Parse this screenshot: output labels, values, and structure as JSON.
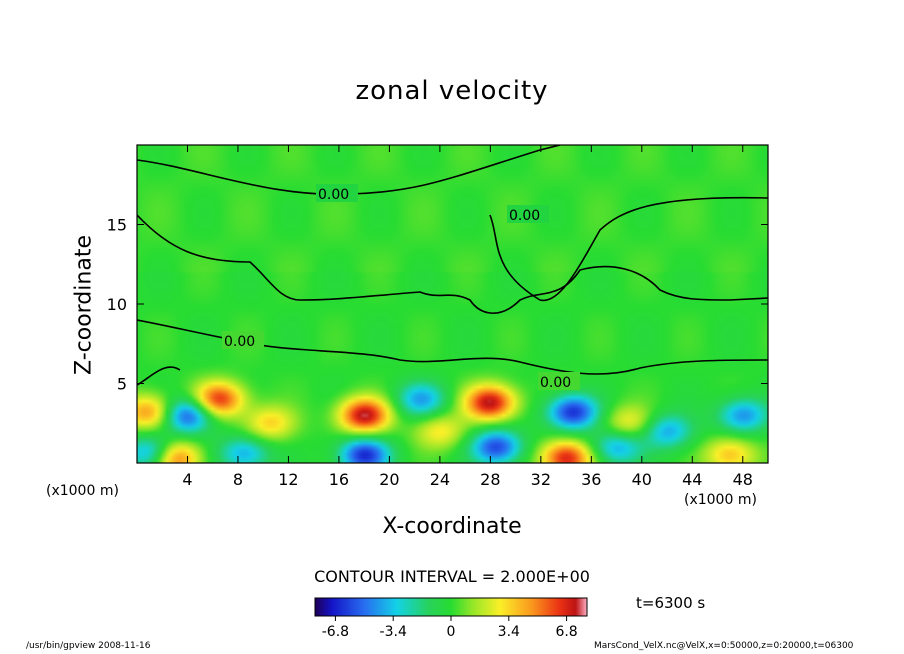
{
  "chart_data": {
    "type": "heatmap",
    "title": "zonal velocity",
    "xlabel": "X-coordinate",
    "ylabel": "Z-coordinate",
    "x_unit": "(x1000 m)",
    "xlim": [
      0,
      50
    ],
    "ylim": [
      0,
      20
    ],
    "x_ticks": [
      "4",
      "8",
      "12",
      "16",
      "20",
      "24",
      "28",
      "32",
      "36",
      "40",
      "44",
      "48"
    ],
    "y_ticks": [
      "5",
      "10",
      "15"
    ],
    "contour_interval_text": "CONTOUR INTERVAL = 2.000E+00",
    "contour_labels": [
      "0.00",
      "0.00",
      "0.00",
      "0.00"
    ],
    "colorbar_ticks": [
      "-6.8",
      "-3.4",
      "0",
      "3.4",
      "6.8"
    ],
    "color_range": [
      -8,
      8
    ],
    "time_label": "t=6300 s",
    "extremes": [
      {
        "x": 6.5,
        "z": 4.0,
        "v": 6.5
      },
      {
        "x": 18.0,
        "z": 3.0,
        "v": 7.5
      },
      {
        "x": 28.0,
        "z": 3.8,
        "v": 7.5
      },
      {
        "x": 34.0,
        "z": 0.3,
        "v": 7.0
      },
      {
        "x": 3.0,
        "z": 0.3,
        "v": 6.0
      },
      {
        "x": 1.0,
        "z": 3.2,
        "v": 5.0
      },
      {
        "x": 10.5,
        "z": 2.5,
        "v": 3.5
      },
      {
        "x": 24.0,
        "z": 2.0,
        "v": 3.0
      },
      {
        "x": 39.0,
        "z": 2.5,
        "v": 3.0
      },
      {
        "x": 47.0,
        "z": 0.5,
        "v": 4.0
      },
      {
        "x": 4.0,
        "z": 3.0,
        "v": -6.0
      },
      {
        "x": 1.2,
        "z": 0.6,
        "v": -5.0
      },
      {
        "x": 8.5,
        "z": 0.6,
        "v": -4.0
      },
      {
        "x": 18.0,
        "z": 0.5,
        "v": -6.5
      },
      {
        "x": 22.5,
        "z": 4.0,
        "v": -4.0
      },
      {
        "x": 28.5,
        "z": 1.0,
        "v": -6.0
      },
      {
        "x": 34.5,
        "z": 3.2,
        "v": -6.5
      },
      {
        "x": 38.0,
        "z": 1.0,
        "v": -4.0
      },
      {
        "x": 42.0,
        "z": 2.0,
        "v": -4.0
      },
      {
        "x": 48.0,
        "z": 3.0,
        "v": -4.5
      }
    ]
  },
  "footer": {
    "left": "/usr/bin/gpview   2008-11-16",
    "right": "MarsCond_VelX.nc@VelX,x=0:50000,z=0:20000,t=06300"
  }
}
